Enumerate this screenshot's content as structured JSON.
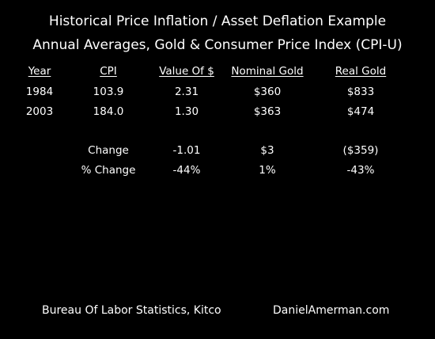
{
  "title": "Historical Price Inflation / Asset Deflation Example",
  "subtitle": "Annual Averages, Gold & Consumer Price Index (CPI-U)",
  "table": {
    "headers": [
      "Year",
      "CPI",
      "Value Of $",
      "Nominal Gold",
      "Real Gold"
    ],
    "rows": [
      [
        "1984",
        "103.9",
        "2.31",
        "$360",
        "$833"
      ],
      [
        "2003",
        "184.0",
        "1.30",
        "$363",
        "$474"
      ]
    ],
    "summary": [
      [
        "",
        "Change",
        "-1.01",
        "$3",
        "($359)"
      ],
      [
        "",
        "% Change",
        "-44%",
        "1%",
        "-43%"
      ]
    ]
  },
  "footer": {
    "source": "Bureau Of Labor Statistics, Kitco",
    "site": "DanielAmerman.com"
  }
}
